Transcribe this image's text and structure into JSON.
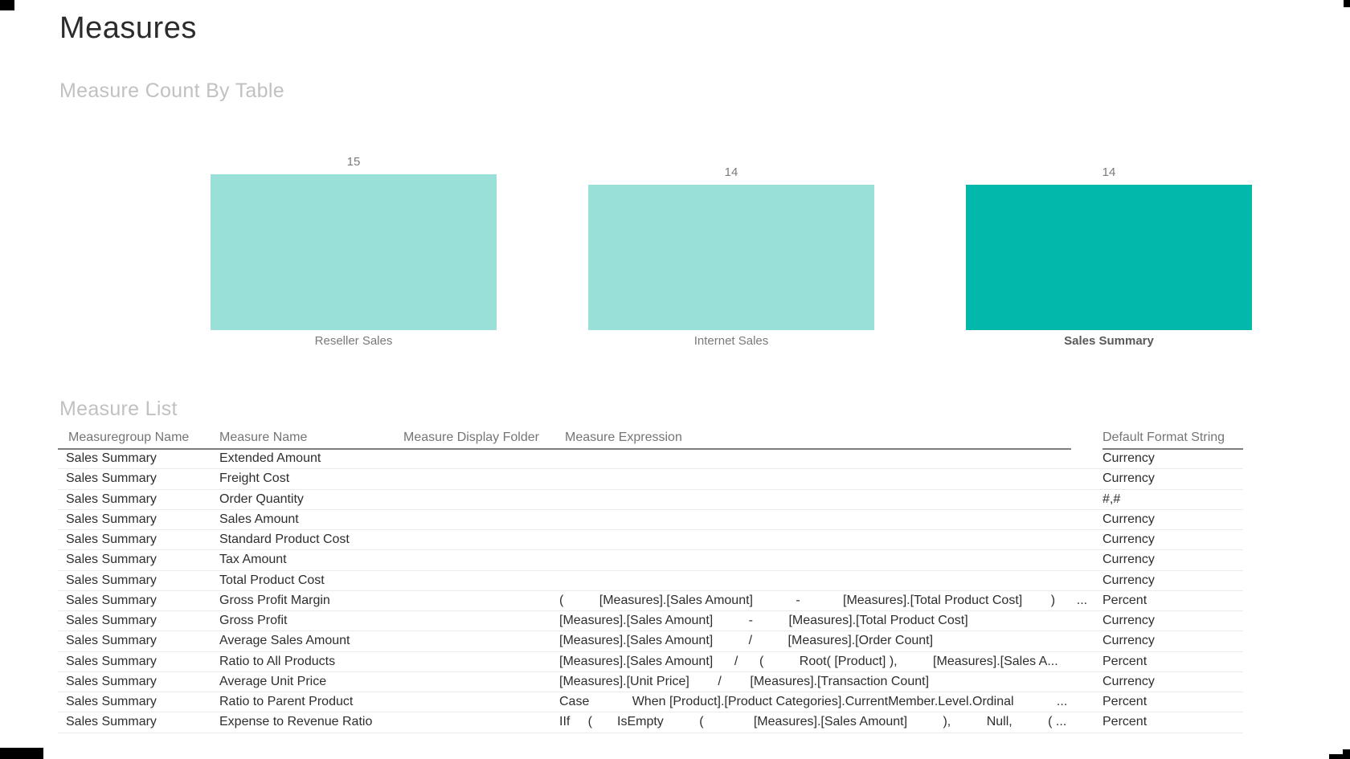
{
  "title": "Measures",
  "sections": {
    "chart_title": "Measure Count By Table",
    "table_title": "Measure List"
  },
  "chart_data": {
    "type": "bar",
    "categories": [
      "Reseller Sales",
      "Internet Sales",
      "Sales Summary"
    ],
    "values": [
      15,
      14,
      14
    ],
    "highlighted_category": "Sales Summary",
    "colors": {
      "bar_default": "#99E0D8",
      "bar_highlight": "#01B8AA"
    },
    "title": "Measure Count By Table",
    "xlabel": "",
    "ylabel": "",
    "ylim": [
      0,
      15
    ],
    "grid": false,
    "axes_hidden": true,
    "data_labels": "above bars"
  },
  "measure_table": {
    "columns": [
      "Measuregroup Name",
      "Measure Name",
      "Measure Display Folder",
      "Measure Expression",
      "Default Format String"
    ],
    "rows": [
      {
        "group": "Sales Summary",
        "name": "Extended Amount",
        "folder": "",
        "expression": "",
        "format": "Currency"
      },
      {
        "group": "Sales Summary",
        "name": "Freight Cost",
        "folder": "",
        "expression": "",
        "format": "Currency"
      },
      {
        "group": "Sales Summary",
        "name": "Order Quantity",
        "folder": "",
        "expression": "",
        "format": "#,#"
      },
      {
        "group": "Sales Summary",
        "name": "Sales Amount",
        "folder": "",
        "expression": "",
        "format": "Currency"
      },
      {
        "group": "Sales Summary",
        "name": "Standard Product Cost",
        "folder": "",
        "expression": "",
        "format": "Currency"
      },
      {
        "group": "Sales Summary",
        "name": "Tax Amount",
        "folder": "",
        "expression": "",
        "format": "Currency"
      },
      {
        "group": "Sales Summary",
        "name": "Total Product Cost",
        "folder": "",
        "expression": "",
        "format": "Currency"
      },
      {
        "group": "Sales Summary",
        "name": "Gross Profit Margin",
        "folder": "",
        "expression": "(          [Measures].[Sales Amount]            -            [Measures].[Total Product Cost]        )      ...",
        "format": "Percent"
      },
      {
        "group": "Sales Summary",
        "name": "Gross Profit",
        "folder": "",
        "expression": "[Measures].[Sales Amount]          -          [Measures].[Total Product Cost]",
        "format": "Currency"
      },
      {
        "group": "Sales Summary",
        "name": "Average Sales Amount",
        "folder": "",
        "expression": "[Measures].[Sales Amount]          /          [Measures].[Order Count]",
        "format": "Currency"
      },
      {
        "group": "Sales Summary",
        "name": "Ratio to All Products",
        "folder": "",
        "expression": "[Measures].[Sales Amount]      /      (          Root( [Product] ),          [Measures].[Sales A...",
        "format": "Percent"
      },
      {
        "group": "Sales Summary",
        "name": "Average Unit Price",
        "folder": "",
        "expression": "[Measures].[Unit Price]        /        [Measures].[Transaction Count]",
        "format": "Currency"
      },
      {
        "group": "Sales Summary",
        "name": "Ratio to Parent Product",
        "folder": "",
        "expression": "Case            When [Product].[Product Categories].CurrentMember.Level.Ordinal            ...",
        "format": "Percent"
      },
      {
        "group": "Sales Summary",
        "name": "Expense to Revenue Ratio",
        "folder": "",
        "expression": "IIf     (       IsEmpty          (              [Measures].[Sales Amount]          ),          Null,          ( ...",
        "format": "Percent"
      }
    ]
  }
}
